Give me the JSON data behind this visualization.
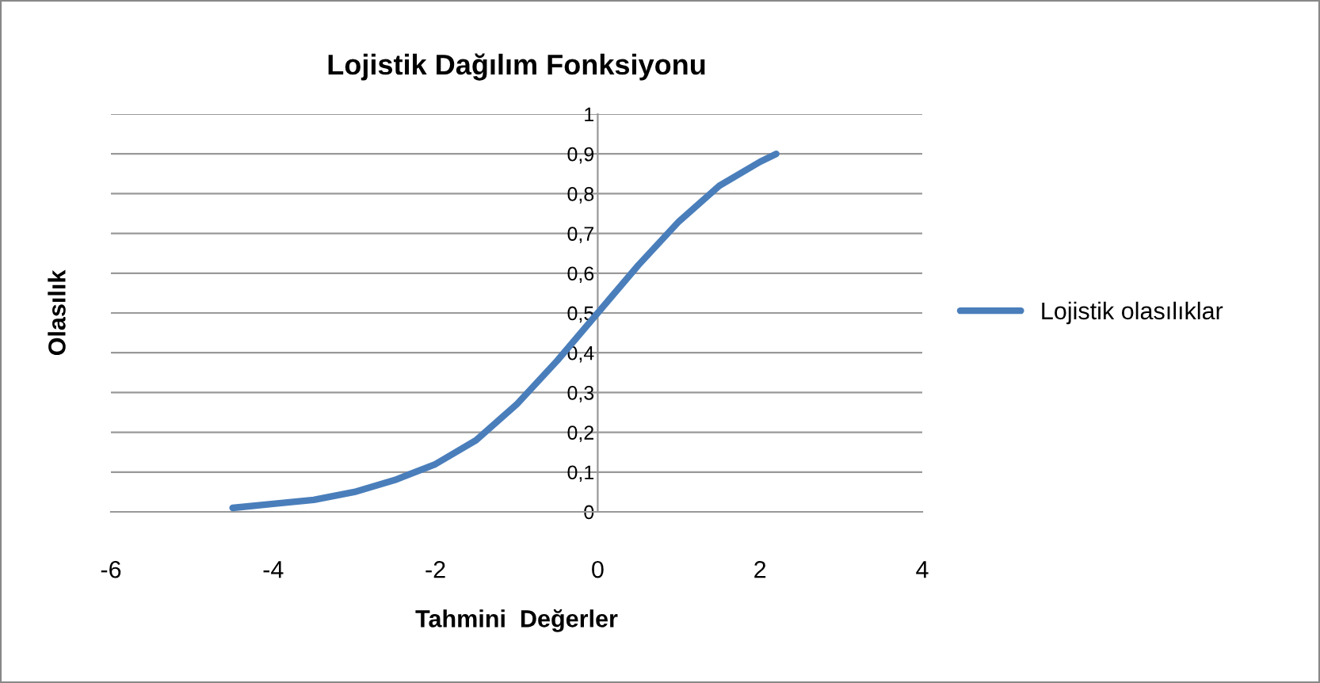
{
  "chart_data": {
    "type": "line",
    "title": "Lojistik Dağılım Fonksiyonu",
    "xlabel": "Tahmini  Değerler",
    "ylabel": "Olasılık",
    "series": [
      {
        "name": "Lojistik olasılıklar",
        "color": "#4a7ebb",
        "x": [
          -4.5,
          -4,
          -3.5,
          -3,
          -2.5,
          -2,
          -1.5,
          -1,
          -0.5,
          0,
          0.5,
          1,
          1.5,
          2,
          2.2
        ],
        "values": [
          0.01,
          0.02,
          0.03,
          0.05,
          0.08,
          0.12,
          0.18,
          0.27,
          0.38,
          0.5,
          0.62,
          0.73,
          0.82,
          0.88,
          0.9
        ]
      }
    ],
    "xlim": [
      -6,
      4
    ],
    "xticks": [
      -6,
      -4,
      -2,
      0,
      2,
      4
    ],
    "ylim": [
      0,
      1
    ],
    "yticks": [
      0,
      {
        "value": 0.1,
        "label": "0,1"
      },
      {
        "value": 0.2,
        "label": "0,2"
      },
      {
        "value": 0.3,
        "label": "0,3"
      },
      {
        "value": 0.4,
        "label": "0,4"
      },
      {
        "value": 0.5,
        "label": "0,5"
      },
      {
        "value": 0.6,
        "label": "0,6"
      },
      {
        "value": 0.7,
        "label": "0,7"
      },
      {
        "value": 0.8,
        "label": "0,8"
      },
      {
        "value": 0.9,
        "label": "0,9"
      },
      1
    ],
    "grid": "y",
    "legend": "right",
    "marker": "none",
    "line_style": "solid"
  }
}
